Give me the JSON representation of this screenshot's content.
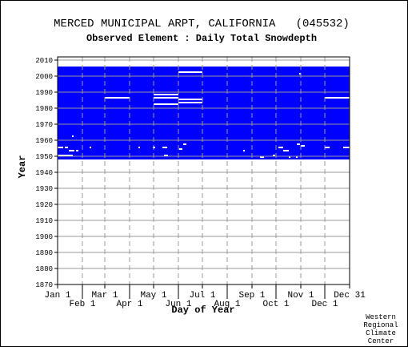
{
  "chart_data": {
    "type": "heatmap",
    "title": "MERCED MUNICIPAL ARPT, CALIFORNIA   (045532)",
    "subtitle": "Observed Element : Daily Total Snowdepth",
    "x_label": "Day of Year",
    "y_label": "Year",
    "credit": [
      "Western",
      "Regional",
      "Climate",
      "Center"
    ],
    "color": "#0000ff",
    "xlim": [
      1,
      366
    ],
    "xticks": [
      {
        "value": 1,
        "label": "Jan 1"
      },
      {
        "value": 32,
        "label": "Feb 1"
      },
      {
        "value": 60,
        "label": "Mar 1"
      },
      {
        "value": 91,
        "label": "Apr 1"
      },
      {
        "value": 121,
        "label": "May 1"
      },
      {
        "value": 152,
        "label": "Jun 1"
      },
      {
        "value": 182,
        "label": "Jul 1"
      },
      {
        "value": 213,
        "label": "Aug 1"
      },
      {
        "value": 244,
        "label": "Sep 1"
      },
      {
        "value": 274,
        "label": "Oct 1"
      },
      {
        "value": 305,
        "label": "Nov 1"
      },
      {
        "value": 335,
        "label": "Dec 1"
      },
      {
        "value": 366,
        "label": "Dec 31"
      }
    ],
    "ylim": [
      1870,
      2012
    ],
    "yticks": [
      1870,
      1880,
      1890,
      1900,
      1910,
      1920,
      1930,
      1940,
      1950,
      1960,
      1970,
      1980,
      1990,
      2000,
      2010
    ],
    "grid": true,
    "record": {
      "start": 1948,
      "end": 2005
    },
    "gaps": [
      {
        "year": 1986,
        "start": 60,
        "end": 91
      },
      {
        "year": 1988,
        "start": 121,
        "end": 152
      },
      {
        "year": 1986,
        "start": 121,
        "end": 152
      },
      {
        "year": 1982,
        "start": 121,
        "end": 152
      },
      {
        "year": 2002,
        "start": 152,
        "end": 182
      },
      {
        "year": 1985,
        "start": 152,
        "end": 182
      },
      {
        "year": 1983,
        "start": 152,
        "end": 182
      },
      {
        "year": 1986,
        "start": 335,
        "end": 366
      },
      {
        "year": 1950,
        "start": 1,
        "end": 20
      },
      {
        "year": 1955,
        "start": 1,
        "end": 8
      },
      {
        "year": 1955,
        "start": 10,
        "end": 14
      },
      {
        "year": 1953,
        "start": 15,
        "end": 22
      },
      {
        "year": 1962,
        "start": 19,
        "end": 21
      },
      {
        "year": 1953,
        "start": 24,
        "end": 27
      },
      {
        "year": 1955,
        "start": 41,
        "end": 43
      },
      {
        "year": 1955,
        "start": 102,
        "end": 104
      },
      {
        "year": 1955,
        "start": 132,
        "end": 138
      },
      {
        "year": 1955,
        "start": 120,
        "end": 123
      },
      {
        "year": 1950,
        "start": 134,
        "end": 139
      },
      {
        "year": 1957,
        "start": 158,
        "end": 162
      },
      {
        "year": 1954,
        "start": 153,
        "end": 157
      },
      {
        "year": 1953,
        "start": 233,
        "end": 235
      },
      {
        "year": 1949,
        "start": 254,
        "end": 259
      },
      {
        "year": 1955,
        "start": 277,
        "end": 283
      },
      {
        "year": 1953,
        "start": 283,
        "end": 290
      },
      {
        "year": 1957,
        "start": 300,
        "end": 304
      },
      {
        "year": 1956,
        "start": 305,
        "end": 310
      },
      {
        "year": 2001,
        "start": 303,
        "end": 305
      },
      {
        "year": 1949,
        "start": 290,
        "end": 292
      },
      {
        "year": 1950,
        "start": 270,
        "end": 273
      },
      {
        "year": 1949,
        "start": 299,
        "end": 301
      },
      {
        "year": 1955,
        "start": 335,
        "end": 341
      },
      {
        "year": 1955,
        "start": 358,
        "end": 366
      }
    ]
  }
}
